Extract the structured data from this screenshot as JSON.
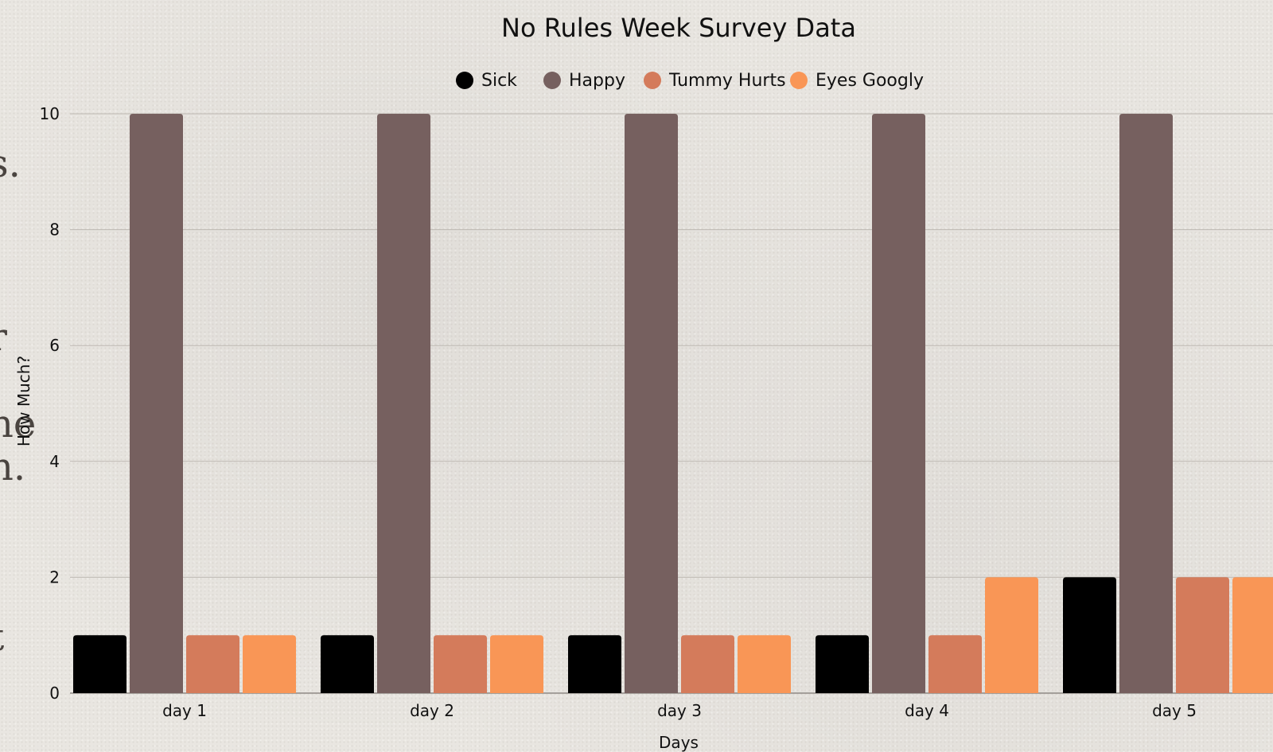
{
  "chart_data": {
    "type": "bar",
    "title": "No Rules Week Survey Data",
    "xlabel": "Days",
    "ylabel": "How Much?",
    "ylim": [
      0,
      10
    ],
    "yticks": [
      0,
      2,
      4,
      6,
      8,
      10
    ],
    "grid": true,
    "legend_position": "top",
    "categories": [
      "day 1",
      "day 2",
      "day 3",
      "day 4",
      "day 5"
    ],
    "series": [
      {
        "name": "Sick",
        "color": "#000000",
        "values": [
          1,
          1,
          1,
          1,
          2
        ]
      },
      {
        "name": "Happy",
        "color": "#76605f",
        "values": [
          10,
          10,
          10,
          10,
          10
        ]
      },
      {
        "name": "Tummy Hurts",
        "color": "#d47b5b",
        "values": [
          1,
          1,
          1,
          1,
          2
        ]
      },
      {
        "name": "Eyes Googly",
        "color": "#f99656",
        "values": [
          1,
          1,
          1,
          2,
          2
        ]
      }
    ]
  },
  "background_fragments": [
    "s.",
    "r",
    "l",
    "ne",
    "n.",
    "t"
  ]
}
